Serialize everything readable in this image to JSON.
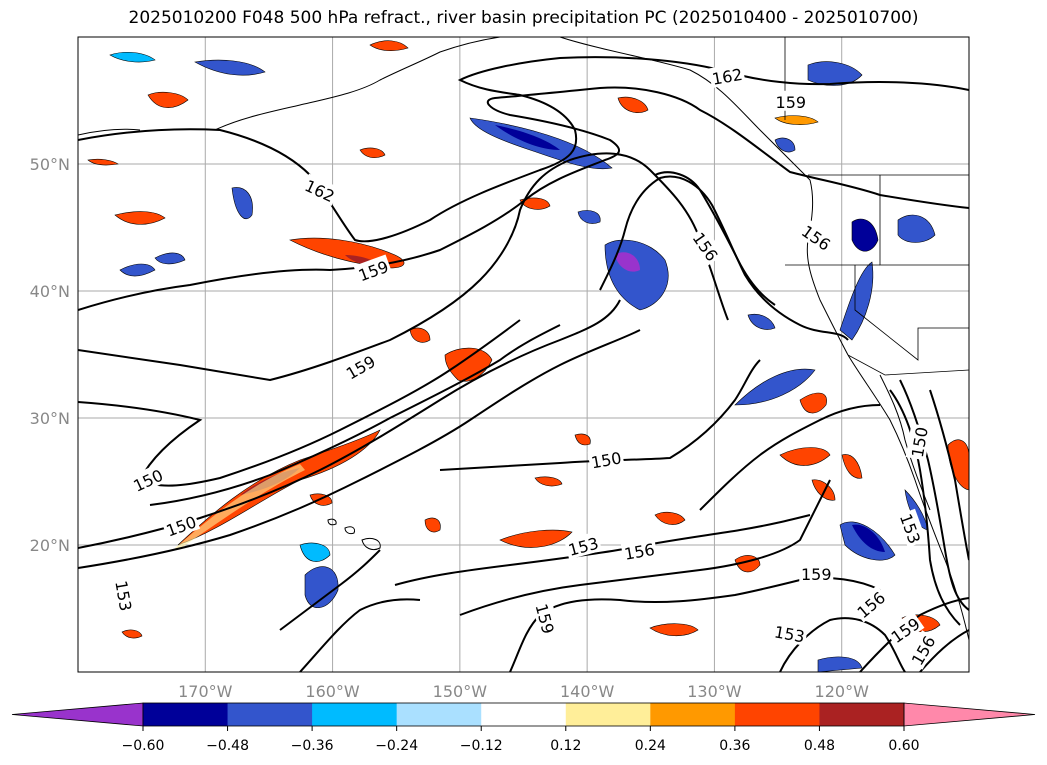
{
  "title": "2025010200 F048 500 hPa refract., river basin precipitation PC (2025010400 - 2025010700)",
  "map": {
    "projection": "PlateCarree",
    "lon_range": [
      -180,
      -110
    ],
    "lat_range": [
      10,
      60
    ],
    "lon_ticks": [
      {
        "lon": -170,
        "label": "170°W"
      },
      {
        "lon": -160,
        "label": "160°W"
      },
      {
        "lon": -150,
        "label": "150°W"
      },
      {
        "lon": -140,
        "label": "140°W"
      },
      {
        "lon": -130,
        "label": "130°W"
      },
      {
        "lon": -120,
        "label": "120°W"
      }
    ],
    "lat_ticks": [
      {
        "lat": 50,
        "label": "50°N"
      },
      {
        "lat": 40,
        "label": "40°N"
      },
      {
        "lat": 30,
        "label": "30°N"
      },
      {
        "lat": 20,
        "label": "20°N"
      }
    ],
    "contour_labels": [
      {
        "text": "162",
        "lon": -161.0,
        "lat": 47.9,
        "rot": 25
      },
      {
        "text": "162",
        "lon": -129.0,
        "lat": 56.9,
        "rot": -10
      },
      {
        "text": "159",
        "lon": -124.0,
        "lat": 54.9,
        "rot": 0
      },
      {
        "text": "159",
        "lon": -156.8,
        "lat": 41.6,
        "rot": -20
      },
      {
        "text": "159",
        "lon": -157.8,
        "lat": 34.0,
        "rot": -30
      },
      {
        "text": "156",
        "lon": -130.7,
        "lat": 43.5,
        "rot": 55
      },
      {
        "text": "156",
        "lon": -122.0,
        "lat": 44.2,
        "rot": 35
      },
      {
        "text": "150",
        "lon": -174.5,
        "lat": 25.1,
        "rot": -25
      },
      {
        "text": "150",
        "lon": -171.9,
        "lat": 21.5,
        "rot": -20
      },
      {
        "text": "150",
        "lon": -138.5,
        "lat": 26.7,
        "rot": -10
      },
      {
        "text": "150",
        "lon": -113.9,
        "lat": 28.1,
        "rot": -80
      },
      {
        "text": "153",
        "lon": -140.3,
        "lat": 19.9,
        "rot": -15
      },
      {
        "text": "153",
        "lon": -124.1,
        "lat": 13.0,
        "rot": 10
      },
      {
        "text": "153",
        "lon": -114.6,
        "lat": 21.3,
        "rot": 70
      },
      {
        "text": "156",
        "lon": -135.9,
        "lat": 19.5,
        "rot": -10
      },
      {
        "text": "156",
        "lon": -117.7,
        "lat": 15.3,
        "rot": -40
      },
      {
        "text": "156",
        "lon": -113.6,
        "lat": 11.7,
        "rot": -60
      },
      {
        "text": "159",
        "lon": -122.0,
        "lat": 17.7,
        "rot": 0
      },
      {
        "text": "159",
        "lon": -115.0,
        "lat": 13.3,
        "rot": -35
      },
      {
        "text": "159",
        "lon": -143.3,
        "lat": 14.2,
        "rot": 75
      },
      {
        "text": "153",
        "lon": -176.4,
        "lat": 16.0,
        "rot": 80
      }
    ]
  },
  "colorbar": {
    "levels": [
      "−0.60",
      "−0.48",
      "−0.36",
      "−0.24",
      "−0.12",
      "0.12",
      "0.24",
      "0.36",
      "0.48",
      "0.60"
    ],
    "colors": [
      "#9933cc",
      "#000099",
      "#3355cc",
      "#00bbff",
      "#aae0ff",
      "#ffffff",
      "#ffee99",
      "#ff9900",
      "#ff4400",
      "#aa2222",
      "#ff88aa"
    ],
    "extend": "both"
  }
}
